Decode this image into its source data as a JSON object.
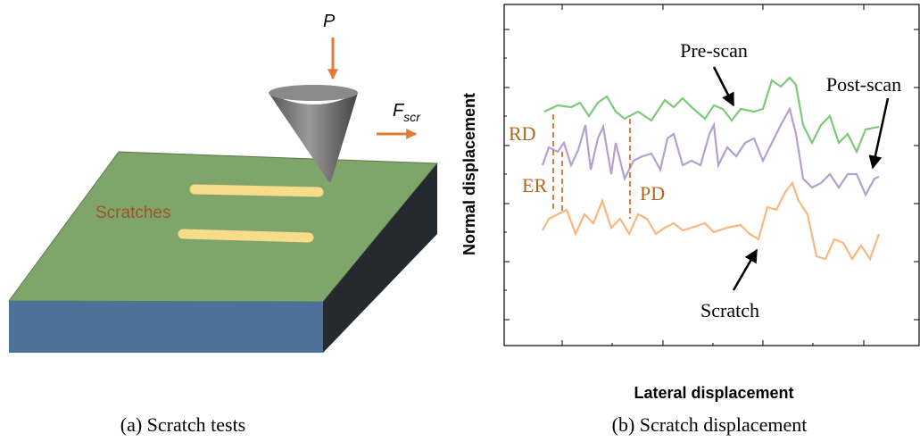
{
  "panel_a": {
    "load": "P",
    "force": {
      "main": "F",
      "sub": "scr"
    },
    "scratches": "Scratches",
    "caption": "(a)  Scratch tests"
  },
  "panel_b": {
    "y_label": "Normal displacement",
    "x_label": "Lateral displacement",
    "pre_scan": "Pre-scan",
    "post_scan": "Post-scan",
    "scratch": "Scratch",
    "rd": "RD",
    "er": "ER",
    "pd": "PD",
    "caption": "(b) Scratch displacement"
  }
}
